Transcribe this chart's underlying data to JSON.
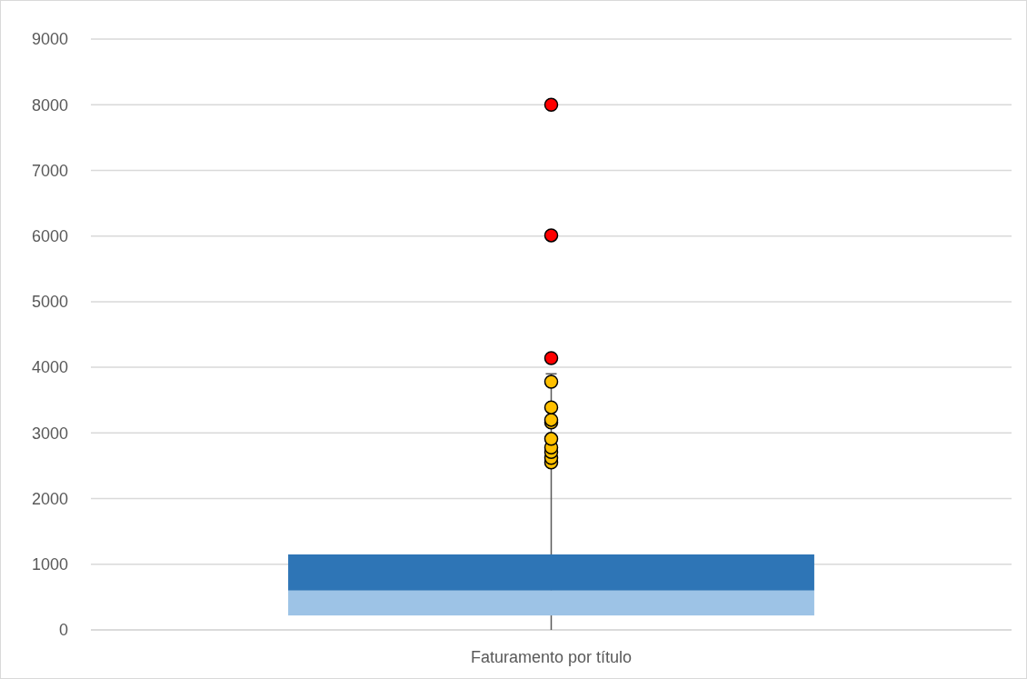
{
  "chart_data": {
    "type": "bar",
    "categories": [
      "Faturamento por título"
    ],
    "ylim": [
      0,
      9000
    ],
    "yticks": [
      0,
      1000,
      2000,
      3000,
      4000,
      5000,
      6000,
      7000,
      8000,
      9000
    ],
    "grid": "y",
    "series": [
      {
        "color": "#9dc3e6",
        "base": [
          220
        ],
        "values": [
          380
        ]
      },
      {
        "color": "#2e75b6",
        "base": [
          600
        ],
        "values": [
          550
        ],
        "errors": [
          [
            0,
            3900
          ]
        ]
      },
      {
        "type": "scatter",
        "color": "#ffc000",
        "marker": "circle",
        "x": [
          "Faturamento por título",
          "Faturamento por título",
          "Faturamento por título",
          "Faturamento por título",
          "Faturamento por título",
          "Faturamento por título",
          "Faturamento por título",
          "Faturamento por título",
          "Faturamento por título"
        ],
        "values": [
          2550,
          2620,
          2710,
          2780,
          2910,
          3160,
          3200,
          3390,
          3780
        ]
      },
      {
        "type": "scatter",
        "color": "#ff0000",
        "marker": "circle",
        "x": [
          "Faturamento por título",
          "Faturamento por título",
          "Faturamento por título"
        ],
        "values": [
          4140,
          6010,
          8000
        ]
      }
    ]
  }
}
